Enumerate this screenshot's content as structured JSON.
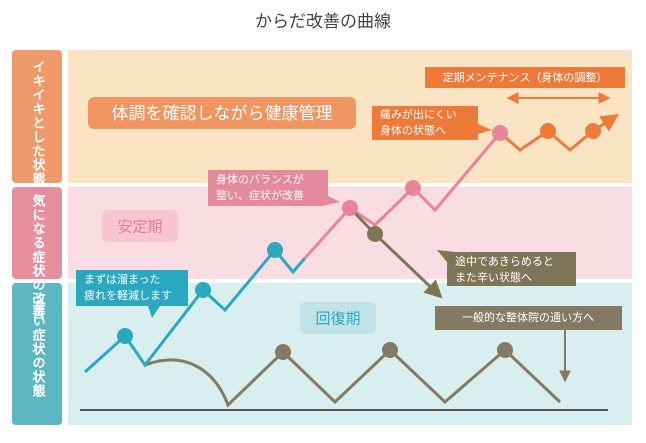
{
  "title": "からだ改善の曲線",
  "side_labels": [
    "イキイキとした状態",
    "気になる症状の改善",
    "辛い症状の状態"
  ],
  "stage_labels": [
    "体調を確認しながら健康管理",
    "安定期",
    "回復期"
  ],
  "callouts": {
    "maintenance": "定期メンテナンス（身体の調整）",
    "pain_free": [
      "痛みが出にくい",
      "身体の状態へ"
    ],
    "balance": [
      "身体のバランスが",
      "整い、症状が改善"
    ],
    "fatigue": [
      "まずは溜まった",
      "疲れを軽減します"
    ],
    "give_up": [
      "途中であきらめると",
      "また辛い状態へ"
    ],
    "typical": "一般的な整体院の通い方へ"
  }
}
